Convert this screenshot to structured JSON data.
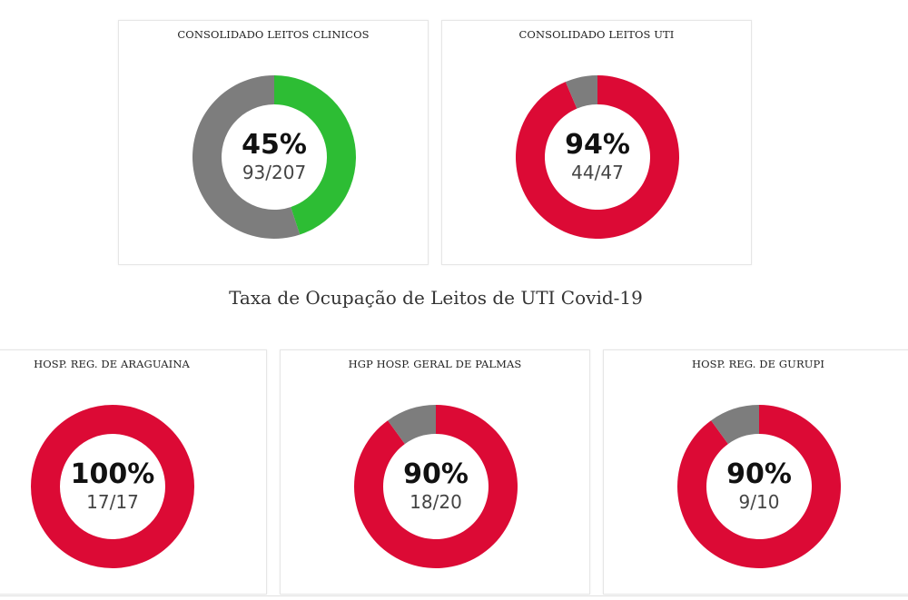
{
  "section_title": "Taxa de Ocupação de Leitos de UTI Covid-19",
  "colors": {
    "low": "#2dbd34",
    "high": "#dc0a35",
    "remaining": "#7d7d7d"
  },
  "chart_data": [
    {
      "type": "pie",
      "title": "CONSOLIDADO LEITOS CLINICOS",
      "percent_label": "45%",
      "ratio_label": "93/207",
      "occupied": 93,
      "total": 207,
      "occupied_color": "#2dbd34",
      "remaining_color": "#7d7d7d"
    },
    {
      "type": "pie",
      "title": "CONSOLIDADO LEITOS UTI",
      "percent_label": "94%",
      "ratio_label": "44/47",
      "occupied": 44,
      "total": 47,
      "occupied_color": "#dc0a35",
      "remaining_color": "#7d7d7d"
    },
    {
      "type": "pie",
      "title": "HOSP. REG. DE ARAGUAINA",
      "percent_label": "100%",
      "ratio_label": "17/17",
      "occupied": 17,
      "total": 17,
      "occupied_color": "#dc0a35",
      "remaining_color": "#7d7d7d"
    },
    {
      "type": "pie",
      "title": "HGP HOSP. GERAL DE PALMAS",
      "percent_label": "90%",
      "ratio_label": "18/20",
      "occupied": 18,
      "total": 20,
      "occupied_color": "#dc0a35",
      "remaining_color": "#7d7d7d"
    },
    {
      "type": "pie",
      "title": "HOSP. REG. DE GURUPI",
      "percent_label": "90%",
      "ratio_label": "9/10",
      "occupied": 9,
      "total": 10,
      "occupied_color": "#dc0a35",
      "remaining_color": "#7d7d7d"
    }
  ]
}
